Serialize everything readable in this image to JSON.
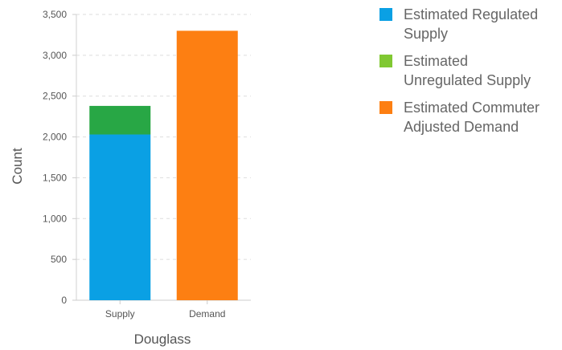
{
  "chart_data": {
    "type": "bar",
    "stacked": true,
    "title": "",
    "xlabel": "Douglass",
    "ylabel": "Count",
    "ylim": [
      0,
      3500
    ],
    "yticks": [
      0,
      500,
      1000,
      1500,
      2000,
      2500,
      3000,
      3500
    ],
    "ytick_labels": [
      "0",
      "500",
      "1,000",
      "1,500",
      "2,000",
      "2,500",
      "3,000",
      "3,500"
    ],
    "grid": true,
    "legend_position": "right",
    "categories": [
      "Supply",
      "Demand"
    ],
    "series": [
      {
        "name": "Estimated Regulated Supply",
        "color": "#0aa0e4",
        "values": [
          2030,
          0
        ]
      },
      {
        "name": "Estimated Unregulated Supply",
        "color": "#28a745",
        "values": [
          350,
          0
        ]
      },
      {
        "name": "Estimated Commuter Adjusted Demand",
        "color": "#fd7f12",
        "values": [
          0,
          3300
        ]
      }
    ]
  },
  "legend": {
    "items": [
      {
        "line1": "Estimated Regulated",
        "line2": "Supply",
        "color": "#0aa0e4",
        "icon": "square"
      },
      {
        "line1": "Estimated",
        "line2": "Unregulated Supply",
        "color": "#80c832",
        "icon": "square"
      },
      {
        "line1": "Estimated Commuter",
        "line2": "Adjusted Demand",
        "color": "#fd7f12",
        "icon": "square"
      }
    ]
  }
}
